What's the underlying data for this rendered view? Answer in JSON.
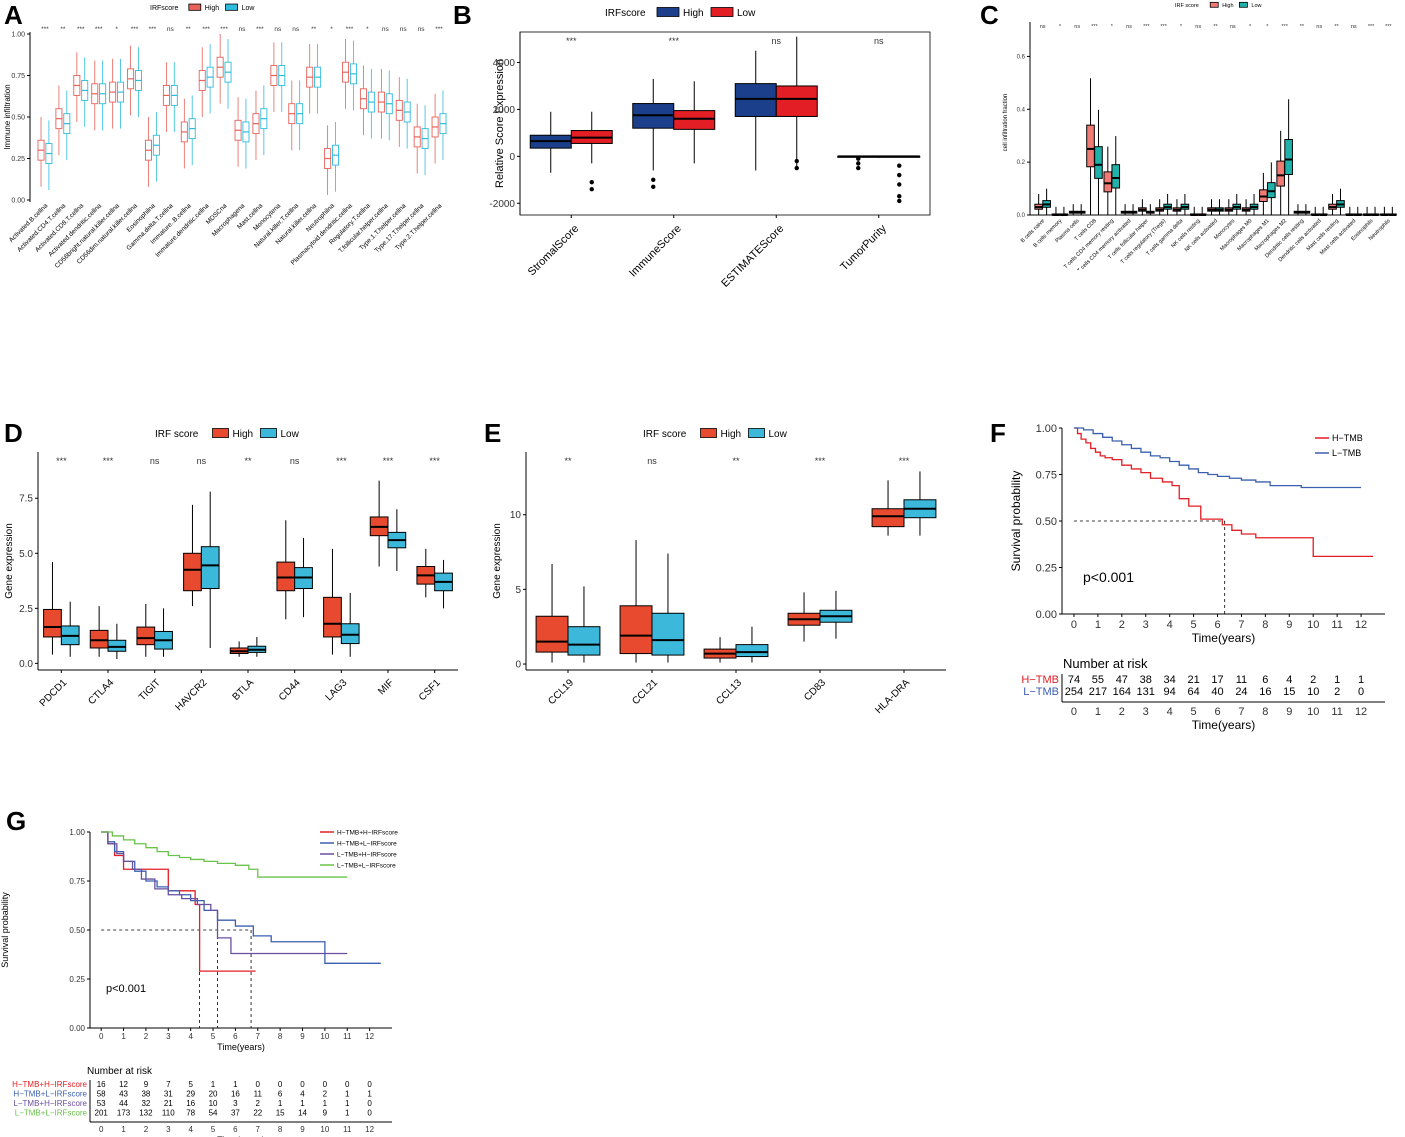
{
  "panel_letters": {
    "A": "A",
    "B": "B",
    "C": "C",
    "D": "D",
    "E": "E",
    "F": "F",
    "G": "G"
  },
  "colors": {
    "a_high": "#e8615a",
    "a_low": "#2ebbe0",
    "b_high": "#1c3f8c",
    "b_low": "#e31e24",
    "c_high": "#f07b74",
    "c_low": "#20b2aa",
    "de_high": "#e84a2f",
    "de_low": "#3cb9da",
    "f_h": "#e31e24",
    "f_l": "#3a5fb0",
    "g_1": "#e31e24",
    "g_2": "#3a5fb0",
    "g_3": "#6a4fa0",
    "g_4": "#69c24a"
  },
  "chart_data": [
    {
      "id": "A",
      "type": "box",
      "legend_title": "IRFscore",
      "legend": [
        "High",
        "Low"
      ],
      "ylabel": "Immune infiltration",
      "ylim": [
        0,
        1
      ],
      "yticks": [
        "0.00",
        "0.25",
        "0.50",
        "0.75",
        "1.00"
      ],
      "categories": [
        "Activated.B.cellna",
        "Activated.CD4.T.cellna",
        "Activated.CD8.T.cellna",
        "Activated.dendritic.cellna",
        "CD56bright.natural.killer.cellna",
        "CD56dim.natural.killer.cellna",
        "Eosinophilna",
        "Gamma.delta.T.cellna",
        "Immature..B.cellna",
        "Immature.dendritic.cellna",
        "MDSCna",
        "Macrophagena",
        "Mast.cellna",
        "Monocytena",
        "Natural.killer.T.cellna",
        "Natural.killer.cellna",
        "Neutrophilna",
        "Plasmacytoid.dendritic.cellna",
        "Regulatory.T.cellna",
        "T.follicular.helper.cellna",
        "Type.1.T.helper.cellna",
        "Type.17.T.helper.cellna",
        "Type.2.T.helper.cellna"
      ],
      "sig": [
        "***",
        "**",
        "***",
        "***",
        "*",
        "***",
        "***",
        "ns",
        "**",
        "***",
        "***",
        "ns",
        "***",
        "ns",
        "ns",
        "**",
        "*",
        "***",
        "*",
        "ns",
        "ns",
        "ns",
        "***"
      ],
      "high_median": [
        0.3,
        0.49,
        0.69,
        0.64,
        0.65,
        0.73,
        0.3,
        0.63,
        0.41,
        0.72,
        0.8,
        0.42,
        0.46,
        0.75,
        0.52,
        0.74,
        0.25,
        0.77,
        0.61,
        0.59,
        0.54,
        0.38,
        0.44
      ],
      "low_median": [
        0.28,
        0.46,
        0.66,
        0.64,
        0.65,
        0.72,
        0.33,
        0.63,
        0.43,
        0.74,
        0.77,
        0.41,
        0.49,
        0.75,
        0.52,
        0.74,
        0.27,
        0.76,
        0.59,
        0.58,
        0.53,
        0.37,
        0.46
      ]
    },
    {
      "id": "B",
      "type": "box",
      "legend_title": "IRFscore",
      "legend": [
        "High",
        "Low"
      ],
      "ylabel": "Relative Score Expression",
      "ylim": [
        -2500,
        5300
      ],
      "yticks": [
        "-2000",
        "0",
        "2000",
        "4000"
      ],
      "categories": [
        "StromalScore",
        "ImmuneScore",
        "ESTIMATEScore",
        "TumorPurity"
      ],
      "sig": [
        "***",
        "***",
        "ns",
        "ns"
      ],
      "high": [
        [
          -700,
          350,
          650,
          900,
          1900
        ],
        [
          -600,
          1200,
          1750,
          2250,
          3300
        ],
        [
          -600,
          1700,
          2450,
          3100,
          4500
        ],
        [
          0,
          0,
          0,
          0,
          0
        ]
      ],
      "low": [
        [
          -300,
          550,
          800,
          1100,
          1900
        ],
        [
          -300,
          1150,
          1600,
          1950,
          3200
        ],
        [
          -500,
          1700,
          2450,
          3000,
          5100
        ],
        [
          0,
          0,
          0,
          0,
          0
        ]
      ]
    },
    {
      "id": "C",
      "type": "box",
      "legend_title": "IRF score",
      "legend": [
        "High",
        "Low"
      ],
      "ylabel": "cell infiltration fraction",
      "ylim": [
        0,
        0.7
      ],
      "yticks": [
        "0.0",
        "0.2",
        "0.4",
        "0.6"
      ],
      "categories": [
        "B cells naive",
        "B cells memory",
        "Plasma cells",
        "T cells CD8",
        "T cells CD4 memory resting",
        "T cells CD4 memory activated",
        "T cells follicular helper",
        "T cells regulatory (Tregs)",
        "T cells gamma delta",
        "NK cells resting",
        "NK cells activated",
        "Monocytes",
        "Macrophages M0",
        "Macrophages M1",
        "Macrophages M2",
        "Dendritic cells resting",
        "Dendritic cells activated",
        "Mast cells resting",
        "Mast cells activated",
        "Eosinophils",
        "Neutrophils"
      ],
      "sig": [
        "ns",
        "*",
        "ns",
        "***",
        "*",
        "ns",
        "***",
        "***",
        "*",
        "ns",
        "**",
        "ns",
        "*",
        "*",
        "***",
        "**",
        "ns",
        "**",
        "ns",
        "***",
        "***"
      ],
      "high_median": [
        0.03,
        0.0,
        0.01,
        0.25,
        0.12,
        0.01,
        0.02,
        0.02,
        0.02,
        0.0,
        0.02,
        0.02,
        0.02,
        0.07,
        0.15,
        0.01,
        0.0,
        0.03,
        0.0,
        0.0,
        0.0
      ],
      "low_median": [
        0.04,
        0.0,
        0.01,
        0.19,
        0.14,
        0.01,
        0.01,
        0.03,
        0.03,
        0.0,
        0.02,
        0.03,
        0.03,
        0.09,
        0.21,
        0.01,
        0.0,
        0.04,
        0.0,
        0.0,
        0.0
      ]
    },
    {
      "id": "D",
      "type": "box",
      "legend_title": "IRF score",
      "legend": [
        "High",
        "Low"
      ],
      "ylabel": "Gene expression",
      "ylim": [
        -0.3,
        9.6
      ],
      "yticks": [
        "0.0",
        "2.5",
        "5.0",
        "7.5"
      ],
      "categories": [
        "PDCD1",
        "CTLA4",
        "TIGIT",
        "HAVCR2",
        "BTLA",
        "CD44",
        "LAG3",
        "MIF",
        "CSF1"
      ],
      "sig": [
        "***",
        "***",
        "ns",
        "ns",
        "**",
        "ns",
        "***",
        "***",
        "***"
      ],
      "high": [
        [
          0.4,
          1.2,
          1.65,
          2.45,
          4.6
        ],
        [
          0.3,
          0.7,
          1.05,
          1.5,
          2.6
        ],
        [
          0.3,
          0.85,
          1.15,
          1.65,
          2.7
        ],
        [
          2.6,
          3.3,
          4.25,
          5.0,
          7.2
        ],
        [
          0.3,
          0.45,
          0.55,
          0.7,
          1.0
        ],
        [
          2.0,
          3.3,
          3.9,
          4.6,
          6.5
        ],
        [
          0.4,
          1.2,
          1.8,
          3.0,
          5.2
        ],
        [
          4.4,
          5.8,
          6.2,
          6.65,
          8.3
        ],
        [
          3.0,
          3.6,
          4.0,
          4.4,
          5.2
        ]
      ],
      "low": [
        [
          0.3,
          0.85,
          1.25,
          1.7,
          2.8
        ],
        [
          0.2,
          0.55,
          0.75,
          1.05,
          1.8
        ],
        [
          0.3,
          0.65,
          1.05,
          1.45,
          2.5
        ],
        [
          0.7,
          3.4,
          4.45,
          5.3,
          7.8
        ],
        [
          0.3,
          0.5,
          0.62,
          0.78,
          1.2
        ],
        [
          2.1,
          3.4,
          3.9,
          4.35,
          5.7
        ],
        [
          0.3,
          0.9,
          1.3,
          1.8,
          3.2
        ],
        [
          4.2,
          5.25,
          5.6,
          5.95,
          7.0
        ],
        [
          2.5,
          3.3,
          3.7,
          4.1,
          4.7
        ]
      ]
    },
    {
      "id": "E",
      "type": "box",
      "legend_title": "IRF score",
      "legend": [
        "High",
        "Low"
      ],
      "ylabel": "Gene expression",
      "ylim": [
        -0.4,
        14.2
      ],
      "yticks": [
        "0",
        "5",
        "10"
      ],
      "categories": [
        "CCL19",
        "CCL21",
        "CCL13",
        "CD83",
        "HLA-DRA"
      ],
      "sig": [
        "**",
        "ns",
        "**",
        "***",
        "***"
      ],
      "high": [
        [
          0.1,
          0.8,
          1.5,
          3.2,
          6.7
        ],
        [
          0.1,
          0.7,
          1.9,
          3.9,
          8.3
        ],
        [
          0.1,
          0.4,
          0.7,
          1.0,
          1.8
        ],
        [
          1.5,
          2.6,
          3.0,
          3.4,
          4.8
        ],
        [
          8.6,
          9.2,
          9.9,
          10.4,
          12.3
        ]
      ],
      "low": [
        [
          0.1,
          0.6,
          1.3,
          2.5,
          5.2
        ],
        [
          0.1,
          0.6,
          1.6,
          3.4,
          7.4
        ],
        [
          0.1,
          0.5,
          0.8,
          1.3,
          2.5
        ],
        [
          1.7,
          2.8,
          3.2,
          3.6,
          4.9
        ],
        [
          8.6,
          9.8,
          10.4,
          11.0,
          12.9
        ]
      ]
    },
    {
      "id": "F",
      "type": "line",
      "ylabel": "Survival probability",
      "xlabel": "Time(years)",
      "xlim": [
        -0.5,
        13
      ],
      "ylim": [
        0,
        1
      ],
      "xticks": [
        "0",
        "1",
        "2",
        "3",
        "4",
        "5",
        "6",
        "7",
        "8",
        "9",
        "10",
        "11",
        "12"
      ],
      "yticks": [
        "0.00",
        "0.25",
        "0.50",
        "0.75",
        "1.00"
      ],
      "pvalue": "p<0.001",
      "median_line": {
        "x": 6.3,
        "y": 0.5
      },
      "series": [
        {
          "name": "H−TMB",
          "x": [
            0,
            0.15,
            0.3,
            0.5,
            0.7,
            0.9,
            1.1,
            1.3,
            1.6,
            2.0,
            2.4,
            2.8,
            3.2,
            3.7,
            4.1,
            4.4,
            4.8,
            5.3,
            6.2,
            6.6,
            7.0,
            7.6,
            8.8,
            10.0,
            12.5
          ],
          "y": [
            1.0,
            0.97,
            0.94,
            0.92,
            0.89,
            0.87,
            0.85,
            0.84,
            0.83,
            0.8,
            0.78,
            0.76,
            0.73,
            0.71,
            0.69,
            0.62,
            0.58,
            0.51,
            0.48,
            0.45,
            0.43,
            0.41,
            0.41,
            0.31,
            0.31
          ]
        },
        {
          "name": "L−TMB",
          "x": [
            0,
            0.4,
            0.8,
            1.2,
            1.6,
            2.0,
            2.4,
            2.8,
            3.2,
            3.6,
            4.0,
            4.4,
            4.8,
            5.2,
            5.6,
            6.0,
            6.5,
            7.0,
            7.6,
            8.2,
            8.8,
            9.5,
            12.0
          ],
          "y": [
            1.0,
            0.99,
            0.97,
            0.95,
            0.93,
            0.91,
            0.89,
            0.87,
            0.85,
            0.84,
            0.82,
            0.8,
            0.78,
            0.76,
            0.75,
            0.74,
            0.73,
            0.72,
            0.71,
            0.69,
            0.69,
            0.68,
            0.68
          ]
        }
      ],
      "risk_title": "Number at risk",
      "risk": [
        {
          "name": "H−TMB",
          "values": [
            "74",
            "55",
            "47",
            "38",
            "34",
            "21",
            "17",
            "11",
            "6",
            "4",
            "2",
            "1",
            "1"
          ]
        },
        {
          "name": "L−TMB",
          "values": [
            "254",
            "217",
            "164",
            "131",
            "94",
            "64",
            "40",
            "24",
            "16",
            "15",
            "10",
            "2",
            "0"
          ]
        }
      ]
    },
    {
      "id": "G",
      "type": "line",
      "ylabel": "Survival probability",
      "xlabel": "Time(years)",
      "xlim": [
        -0.5,
        13
      ],
      "ylim": [
        0,
        1
      ],
      "xticks": [
        "0",
        "1",
        "2",
        "3",
        "4",
        "5",
        "6",
        "7",
        "8",
        "9",
        "10",
        "11",
        "12"
      ],
      "yticks": [
        "0.00",
        "0.25",
        "0.50",
        "0.75",
        "1.00"
      ],
      "pvalue": "p<0.001",
      "median_lines": [
        {
          "x": 4.4,
          "y": 0.5
        },
        {
          "x": 5.2,
          "y": 0.5
        },
        {
          "x": 6.7,
          "y": 0.5
        }
      ],
      "series": [
        {
          "name": "H−TMB+H−IRFscore",
          "x": [
            0,
            0.3,
            0.6,
            1.0,
            2.2,
            3.0,
            4.2,
            4.4,
            6.9
          ],
          "y": [
            1.0,
            0.94,
            0.88,
            0.81,
            0.81,
            0.7,
            0.63,
            0.29,
            0.29
          ]
        },
        {
          "name": "H−TMB+L−IRFscore",
          "x": [
            0,
            0.3,
            0.6,
            1.0,
            1.5,
            2.0,
            2.5,
            3.0,
            3.5,
            4.0,
            4.6,
            5.2,
            6.0,
            6.8,
            7.6,
            8.5,
            10.0,
            12.5
          ],
          "y": [
            1.0,
            0.95,
            0.9,
            0.85,
            0.8,
            0.75,
            0.72,
            0.7,
            0.68,
            0.65,
            0.6,
            0.55,
            0.52,
            0.47,
            0.44,
            0.44,
            0.33,
            0.33
          ]
        },
        {
          "name": "L−TMB+H−IRFscore",
          "x": [
            0,
            0.3,
            0.7,
            1.0,
            1.4,
            1.8,
            2.4,
            3.0,
            3.6,
            4.3,
            4.9,
            5.2,
            5.8,
            11.0
          ],
          "y": [
            1.0,
            0.94,
            0.89,
            0.85,
            0.81,
            0.76,
            0.71,
            0.68,
            0.66,
            0.63,
            0.6,
            0.46,
            0.38,
            0.38
          ]
        },
        {
          "name": "L−TMB+L−IRFscore",
          "x": [
            0,
            0.5,
            1.0,
            1.5,
            2.0,
            2.5,
            3.0,
            3.5,
            4.0,
            4.6,
            5.2,
            6.0,
            6.6,
            7.0,
            8.0,
            9.0,
            11.0
          ],
          "y": [
            1.0,
            0.98,
            0.96,
            0.94,
            0.92,
            0.9,
            0.88,
            0.87,
            0.86,
            0.85,
            0.84,
            0.83,
            0.81,
            0.77,
            0.77,
            0.77,
            0.77
          ]
        }
      ],
      "risk_title": "Number at risk",
      "risk": [
        {
          "name": "H−TMB+H−IRFscore",
          "values": [
            "16",
            "12",
            "9",
            "7",
            "5",
            "1",
            "1",
            "0",
            "0",
            "0",
            "0",
            "0",
            "0"
          ]
        },
        {
          "name": "H−TMB+L−IRFscore",
          "values": [
            "58",
            "43",
            "38",
            "31",
            "29",
            "20",
            "16",
            "11",
            "6",
            "4",
            "2",
            "1",
            "1"
          ]
        },
        {
          "name": "L−TMB+H−IRFscore",
          "values": [
            "53",
            "44",
            "32",
            "21",
            "16",
            "10",
            "3",
            "2",
            "1",
            "1",
            "1",
            "1",
            "0"
          ]
        },
        {
          "name": "L−TMB+L−IRFscore",
          "values": [
            "201",
            "173",
            "132",
            "110",
            "78",
            "54",
            "37",
            "22",
            "15",
            "14",
            "9",
            "1",
            "0"
          ]
        }
      ]
    }
  ]
}
